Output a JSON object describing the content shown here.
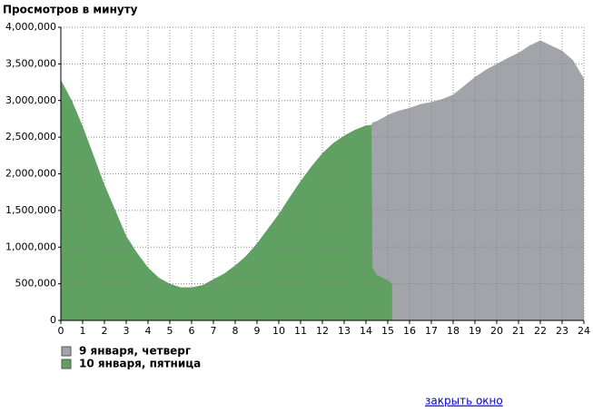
{
  "chart_data": {
    "type": "area",
    "title": "Просмотров в минуту",
    "x": [
      0,
      0.5,
      1,
      1.5,
      2,
      2.5,
      3,
      3.5,
      4,
      4.5,
      5,
      5.5,
      6,
      6.5,
      7,
      7.5,
      8,
      8.5,
      9,
      9.5,
      10,
      10.5,
      11,
      11.5,
      12,
      12.5,
      13,
      13.5,
      14,
      14.25,
      14.3,
      14.5,
      15,
      15.2,
      15.5,
      16,
      16.5,
      17,
      17.5,
      18,
      18.5,
      19,
      19.5,
      20,
      20.5,
      21,
      21.5,
      22,
      22.5,
      23,
      23.5,
      24
    ],
    "series": [
      {
        "name": "9 января, четверг",
        "color": "#a3a3aa",
        "values": [
          3280000,
          3000000,
          2650000,
          2250000,
          1850000,
          1500000,
          1150000,
          920000,
          720000,
          580000,
          500000,
          450000,
          450000,
          480000,
          560000,
          640000,
          750000,
          880000,
          1050000,
          1250000,
          1450000,
          1680000,
          1900000,
          2100000,
          2280000,
          2420000,
          2520000,
          2600000,
          2660000,
          2670000,
          2700000,
          2720000,
          2800000,
          2830000,
          2860000,
          2900000,
          2950000,
          2980000,
          3020000,
          3080000,
          3200000,
          3320000,
          3420000,
          3500000,
          3580000,
          3650000,
          3750000,
          3820000,
          3750000,
          3680000,
          3550000,
          3300000
        ]
      },
      {
        "name": "10 января, пятница",
        "color": "#5fa160",
        "values": [
          3280000,
          3000000,
          2650000,
          2250000,
          1850000,
          1500000,
          1150000,
          920000,
          720000,
          580000,
          500000,
          450000,
          450000,
          480000,
          560000,
          640000,
          750000,
          880000,
          1050000,
          1250000,
          1450000,
          1680000,
          1900000,
          2100000,
          2280000,
          2420000,
          2520000,
          2600000,
          2660000,
          2660000,
          720000,
          620000,
          550000,
          500000,
          null,
          null,
          null,
          null,
          null,
          null,
          null,
          null,
          null,
          null,
          null,
          null,
          null,
          null,
          null,
          null,
          null,
          null
        ]
      }
    ],
    "xlim": [
      0,
      24
    ],
    "xticks": [
      0,
      1,
      2,
      3,
      4,
      5,
      6,
      7,
      8,
      9,
      10,
      11,
      12,
      13,
      14,
      15,
      16,
      17,
      18,
      19,
      20,
      21,
      22,
      23,
      24
    ],
    "ylim": [
      0,
      4000000
    ],
    "yticks": [
      0,
      {
        "value": 500000,
        "label": "500,000"
      },
      {
        "value": 1000000,
        "label": "1,000,000"
      },
      {
        "value": 1500000,
        "label": "1,500,000"
      },
      {
        "value": 2000000,
        "label": "2,000,000"
      },
      {
        "value": 2500000,
        "label": "2,500,000"
      },
      {
        "value": 3000000,
        "label": "3,000,000"
      },
      {
        "value": 3500000,
        "label": "3,500,000"
      },
      {
        "value": 4000000,
        "label": "4,000,000"
      }
    ],
    "grid": true
  },
  "link": "закрыть окно"
}
